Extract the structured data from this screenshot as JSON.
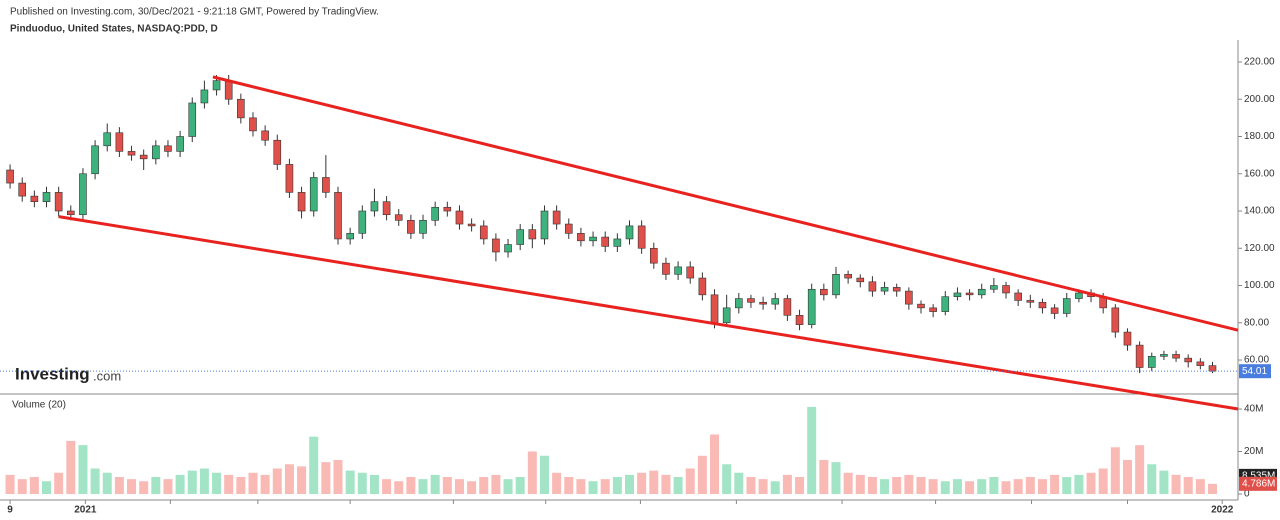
{
  "header": {
    "published": "Published on Investing.com, 30/Dec/2021 - 9:21:18 GMT, Powered by TradingView.",
    "symbol": "Pinduoduo, United States, NASDAQ:PDD, D"
  },
  "logo": {
    "name": "Investing",
    "suffix": ".com"
  },
  "chart_data": {
    "type": "candlestick",
    "xlim": [
      -0.5,
      101.1
    ],
    "xticks": [
      {
        "value": 0,
        "label": "9"
      },
      {
        "value": 6.2,
        "label": "2021"
      },
      {
        "value": 13.2,
        "label": null
      },
      {
        "value": 20.4,
        "label": null
      },
      {
        "value": 28,
        "label": null
      },
      {
        "value": 36.5,
        "label": null
      },
      {
        "value": 44.1,
        "label": null
      },
      {
        "value": 51.9,
        "label": null
      },
      {
        "value": 59.8,
        "label": null
      },
      {
        "value": 68.5,
        "label": null
      },
      {
        "value": 76.2,
        "label": null
      },
      {
        "value": 84.1,
        "label": null
      },
      {
        "value": 92,
        "label": null
      },
      {
        "value": 99.8,
        "label": "2022"
      }
    ],
    "ylim": [
      42.3,
      231.8
    ],
    "yticks": [
      {
        "value": 60,
        "label": "60.00"
      },
      {
        "value": 80,
        "label": "80.00"
      },
      {
        "value": 100,
        "label": "100.00"
      },
      {
        "value": 120,
        "label": "120.00"
      },
      {
        "value": 140,
        "label": "140.00"
      },
      {
        "value": 160,
        "label": "160.00"
      },
      {
        "value": 180,
        "label": "180.00"
      },
      {
        "value": 200,
        "label": "200.00"
      },
      {
        "value": 220,
        "label": "220.00"
      }
    ],
    "up_color": "#3db27c",
    "down_color": "#e0504a",
    "open": [
      162,
      155,
      148,
      145,
      150,
      140,
      138,
      160,
      175,
      182,
      172,
      170,
      168,
      175,
      172,
      180,
      198,
      205,
      210,
      200,
      190,
      183,
      178,
      165,
      150,
      140,
      158,
      150,
      125,
      128,
      140,
      145,
      138,
      135,
      128,
      135,
      142,
      140,
      133,
      132,
      125,
      118,
      122,
      130,
      125,
      140,
      133,
      128,
      124,
      126,
      121,
      125,
      132,
      120,
      112,
      106,
      110,
      104,
      95,
      80,
      88,
      93,
      91,
      90,
      93,
      84,
      79,
      98,
      95,
      106,
      104,
      102,
      97,
      99,
      97,
      90,
      88,
      86,
      94,
      96,
      95,
      98,
      100,
      96,
      92,
      91,
      88,
      85,
      93,
      96,
      94,
      88,
      75,
      68,
      56,
      62,
      63,
      61,
      59,
      57
    ],
    "high": [
      165,
      158,
      151,
      153,
      153,
      143,
      163,
      178,
      187,
      185,
      175,
      173,
      178,
      178,
      183,
      201,
      210,
      213,
      213,
      203,
      193,
      186,
      181,
      168,
      153,
      161,
      170,
      153,
      131,
      143,
      152,
      148,
      141,
      138,
      138,
      145,
      145,
      143,
      136,
      135,
      128,
      125,
      133,
      133,
      143,
      143,
      136,
      131,
      129,
      129,
      128,
      135,
      135,
      123,
      115,
      113,
      113,
      107,
      98,
      95,
      96,
      95,
      94,
      96,
      95,
      87,
      101,
      101,
      110,
      108,
      106,
      105,
      102,
      101,
      99,
      92,
      90,
      97,
      99,
      98,
      101,
      104,
      102,
      98,
      95,
      93,
      90,
      96,
      98,
      98,
      96,
      90,
      77,
      70,
      64,
      65,
      65,
      63,
      61,
      59
    ],
    "low": [
      152,
      145,
      142,
      142,
      137,
      135,
      135,
      157,
      172,
      169,
      167,
      162,
      165,
      169,
      169,
      177,
      195,
      202,
      197,
      187,
      180,
      175,
      162,
      147,
      136,
      137,
      147,
      122,
      122,
      125,
      137,
      135,
      132,
      125,
      125,
      132,
      137,
      130,
      129,
      122,
      113,
      115,
      119,
      120,
      122,
      130,
      125,
      121,
      121,
      118,
      118,
      122,
      117,
      109,
      103,
      103,
      101,
      92,
      77,
      78,
      85,
      88,
      87,
      87,
      81,
      76,
      77,
      92,
      93,
      101,
      99,
      94,
      95,
      94,
      87,
      85,
      83,
      84,
      92,
      92,
      93,
      96,
      93,
      89,
      88,
      85,
      82,
      83,
      91,
      91,
      85,
      72,
      65,
      53,
      54,
      60,
      59,
      56,
      55,
      53
    ],
    "close": [
      155,
      148,
      145,
      150,
      140,
      138,
      160,
      175,
      182,
      172,
      170,
      168,
      175,
      172,
      180,
      198,
      205,
      210,
      200,
      190,
      183,
      178,
      165,
      150,
      140,
      158,
      150,
      125,
      128,
      140,
      145,
      138,
      135,
      128,
      135,
      142,
      140,
      133,
      132,
      125,
      118,
      122,
      130,
      125,
      140,
      133,
      128,
      124,
      126,
      121,
      125,
      132,
      120,
      112,
      106,
      110,
      104,
      95,
      80,
      88,
      93,
      91,
      90,
      93,
      84,
      79,
      98,
      95,
      106,
      104,
      102,
      97,
      99,
      97,
      90,
      88,
      86,
      94,
      96,
      95,
      98,
      100,
      96,
      92,
      91,
      88,
      85,
      93,
      96,
      94,
      88,
      75,
      68,
      56,
      62,
      63,
      61,
      59,
      57,
      54.01
    ],
    "price_tag": {
      "value": 54.01,
      "label": "54.01"
    },
    "trendlines": [
      {
        "color": "#e8231f",
        "x": [
          16.7,
          101.1
        ],
        "y": [
          212,
          76
        ]
      },
      {
        "color": "#e8231f",
        "x": [
          4,
          101.1
        ],
        "y": [
          137,
          33.7
        ]
      }
    ],
    "volume_title": "Volume (20)",
    "vlim": [
      0,
      46600000
    ],
    "vticks": [
      0,
      {
        "value": 20000000,
        "label": "20M"
      },
      {
        "value": 40000000,
        "label": "40M"
      }
    ],
    "volume": [
      9000000,
      7000000,
      8000000,
      6000000,
      10000000,
      25000000,
      23000000,
      12000000,
      10000000,
      8000000,
      7000000,
      6000000,
      8000000,
      7000000,
      9000000,
      11000000,
      12000000,
      10000000,
      9000000,
      8000000,
      10000000,
      9000000,
      12000000,
      14000000,
      13000000,
      27000000,
      15000000,
      16000000,
      11000000,
      10000000,
      9000000,
      7000000,
      6000000,
      8000000,
      7000000,
      9000000,
      8000000,
      7000000,
      6000000,
      8000000,
      9000000,
      7000000,
      8000000,
      20000000,
      18000000,
      10000000,
      8000000,
      7000000,
      6000000,
      7000000,
      8000000,
      9000000,
      10000000,
      11000000,
      9000000,
      8000000,
      12000000,
      18000000,
      28000000,
      14000000,
      10000000,
      8000000,
      7000000,
      6000000,
      9000000,
      8000000,
      41000000,
      16000000,
      15000000,
      10000000,
      9000000,
      8000000,
      7000000,
      8000000,
      9000000,
      8000000,
      7000000,
      6000000,
      7000000,
      6000000,
      7000000,
      8000000,
      6000000,
      7000000,
      8000000,
      7000000,
      9000000,
      8000000,
      9000000,
      10000000,
      12000000,
      22000000,
      16000000,
      23000000,
      14000000,
      11000000,
      9000000,
      8000000,
      7000000,
      4786000
    ],
    "volume_up_color": "#a3e4c6",
    "volume_down_color": "#f9b9b5",
    "volume_tags": [
      {
        "value": 8535000,
        "label": "8.535M",
        "color": "#222222"
      },
      {
        "value": 4786000,
        "label": "4.786M",
        "color": "#e0504a"
      }
    ]
  }
}
